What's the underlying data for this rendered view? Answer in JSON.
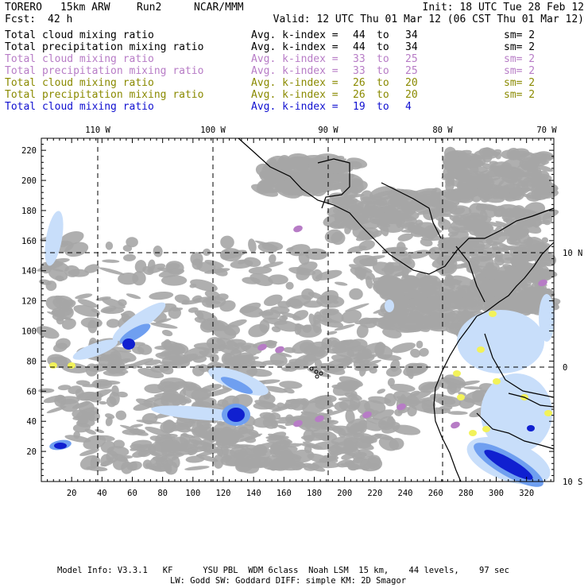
{
  "header": {
    "model": "TORERO",
    "resolution": "15km ARW",
    "run": "Run2",
    "org": "NCAR/MMM",
    "init": "Init: 18 UTC Tue 28 Feb 12",
    "fcst_label": "Fcst:",
    "fcst_value": "42 h",
    "valid": "Valid: 12 UTC Thu 01 Mar 12 (06 CST Thu 01 Mar 12)"
  },
  "legend": [
    {
      "field": "Total cloud mixing ratio",
      "kindex_label": "Avg. k-index =",
      "from": "44",
      "to_word": "to",
      "to": "34",
      "sm": "sm= 2",
      "color": "#000000"
    },
    {
      "field": "Total precipitation mixing ratio",
      "kindex_label": "Avg. k-index =",
      "from": "44",
      "to_word": "to",
      "to": "34",
      "sm": "sm= 2",
      "color": "#000000"
    },
    {
      "field": "Total cloud mixing ratio",
      "kindex_label": "Avg. k-index =",
      "from": "33",
      "to_word": "to",
      "to": "25",
      "sm": "sm= 2",
      "color": "#b77cc6"
    },
    {
      "field": "Total precipitation mixing ratio",
      "kindex_label": "Avg. k-index =",
      "from": "33",
      "to_word": "to",
      "to": "25",
      "sm": "sm= 2",
      "color": "#b77cc6"
    },
    {
      "field": "Total cloud mixing ratio",
      "kindex_label": "Avg. k-index =",
      "from": "26",
      "to_word": "to",
      "to": "20",
      "sm": "sm= 2",
      "color": "#8a8a00"
    },
    {
      "field": "Total precipitation mixing ratio",
      "kindex_label": "Avg. k-index =",
      "from": "26",
      "to_word": "to",
      "to": "20",
      "sm": "sm= 2",
      "color": "#8a8a00"
    },
    {
      "field": "Total cloud mixing ratio",
      "kindex_label": "Avg. k-index =",
      "from": "19",
      "to_word": "to",
      "to": "4",
      "sm": "",
      "color": "#1010d0"
    }
  ],
  "map": {
    "top_lon_labels": [
      "110 W",
      "100 W",
      "90 W",
      "80 W",
      "70 W"
    ],
    "right_lat_labels": [
      "10 N",
      "0",
      "10 S"
    ],
    "x_ticks": [
      "20",
      "40",
      "60",
      "80",
      "100",
      "120",
      "140",
      "160",
      "180",
      "200",
      "220",
      "240",
      "260",
      "280",
      "300",
      "320"
    ],
    "y_ticks": [
      "20",
      "40",
      "60",
      "80",
      "100",
      "120",
      "140",
      "160",
      "180",
      "200",
      "220"
    ],
    "colors": {
      "cloud_gray": "#a6a6a6",
      "light_blue": "#c8defa",
      "mid_blue": "#6f9ff0",
      "dark_blue": "#1020d0",
      "purple": "#b77cc6",
      "yellow": "#f2f25a",
      "coast": "#000000"
    }
  },
  "footer": {
    "line1": "Model Info: V3.3.1   KF      YSU PBL  WDM 6class  Noah LSM  15 km,    44 levels,    97 sec",
    "line2": "LW: Godd SW: Goddard DIFF: simple KM: 2D Smagor"
  }
}
